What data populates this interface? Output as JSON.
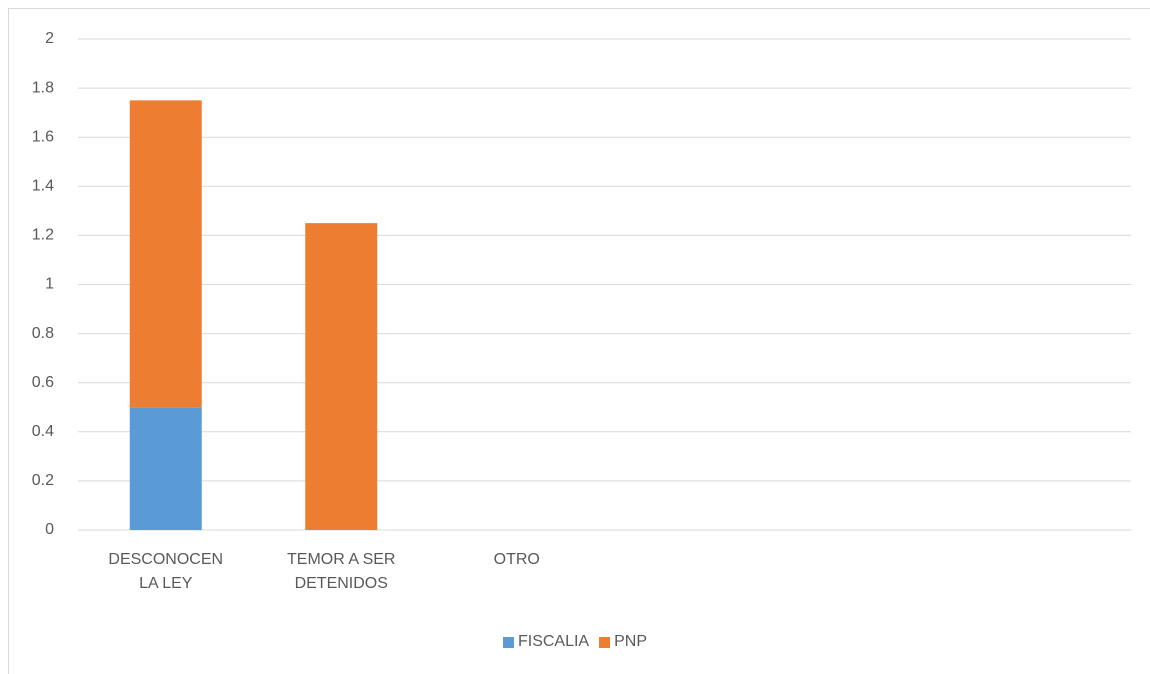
{
  "chart_data": {
    "type": "stacked_bar",
    "categories": [
      "DESCONOCEN LA LEY",
      "TEMOR A SER DETENIDOS",
      "OTRO",
      null,
      null,
      null
    ],
    "series": [
      {
        "name": "FISCALIA",
        "color": "#5b9bd5",
        "values": [
          0.5,
          0,
          0,
          null,
          null,
          null
        ]
      },
      {
        "name": "PNP",
        "color": "#ed7d31",
        "values": [
          1.25,
          1.25,
          0,
          null,
          null,
          null
        ]
      }
    ],
    "ylim": [
      0,
      2
    ],
    "yticks": [
      0,
      0.2,
      0.4,
      0.6,
      0.8,
      1,
      1.2,
      1.4,
      1.6,
      1.8,
      2
    ],
    "grid": true,
    "legend": "bottom"
  }
}
